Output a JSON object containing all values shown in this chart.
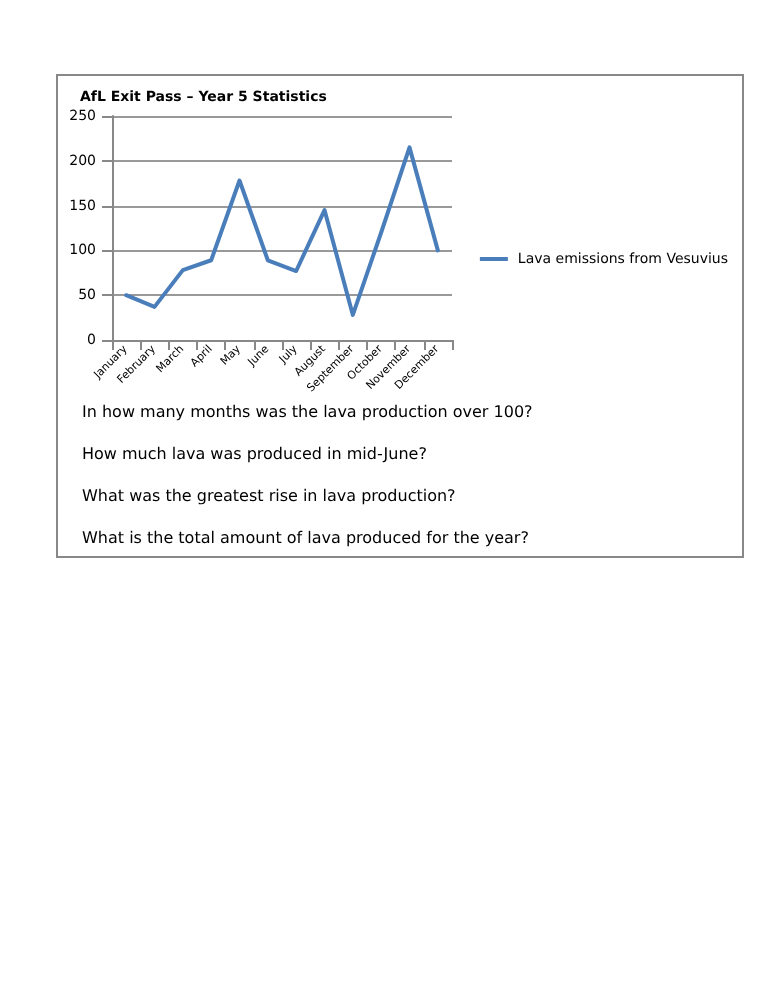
{
  "chart_data": {
    "type": "line",
    "title": "AfL Exit Pass – Year 5 Statistics",
    "categories": [
      "January",
      "February",
      "March",
      "April",
      "May",
      "June",
      "July",
      "August",
      "September",
      "October",
      "November",
      "December"
    ],
    "series": [
      {
        "name": "Lava emissions from Vesuvius",
        "color": "#4a7ebb",
        "values": [
          50,
          37,
          78,
          89,
          178,
          89,
          77,
          145,
          28,
          120,
          215,
          100
        ]
      }
    ],
    "ylim": [
      0,
      250
    ],
    "yticks": [
      0,
      50,
      100,
      150,
      200,
      250
    ],
    "grid": "y",
    "legend": "right",
    "marker": "none",
    "line_style": "solid",
    "annotations": [
      "In how many months was the lava production over 100?",
      "How much lava was produced in mid-June?",
      "What was the greatest rise in lava production?",
      "What is the total amount of lava produced for the year?"
    ]
  }
}
